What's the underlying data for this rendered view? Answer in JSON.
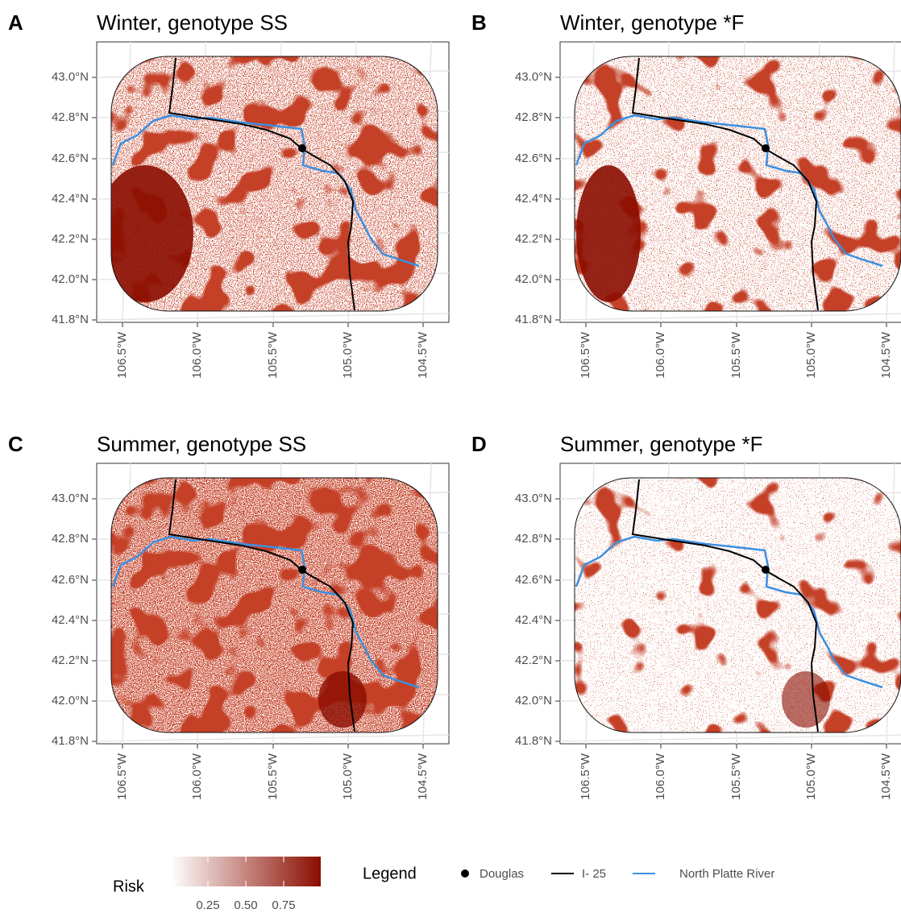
{
  "panels": [
    {
      "letter": "A",
      "title": "Winter, genotype SS"
    },
    {
      "letter": "B",
      "title": "Winter, genotype *F"
    },
    {
      "letter": "C",
      "title": "Summer, genotype SS"
    },
    {
      "letter": "D",
      "title": "Summer, genotype *F"
    }
  ],
  "y_ticks": [
    "43.0°N",
    "42.8°N",
    "42.6°N",
    "42.4°N",
    "42.2°N",
    "42.0°N",
    "41.8°N"
  ],
  "x_ticks": [
    "106.5°W",
    "106.0°W",
    "105.5°W",
    "105.0°W",
    "104.5°W"
  ],
  "colorbar": {
    "title": "Risk",
    "ticks": [
      "0.25",
      "0.50",
      "0.75"
    ]
  },
  "legend": {
    "title": "Legend",
    "items": [
      "Douglas",
      "I- 25",
      "North Platte River"
    ]
  }
}
